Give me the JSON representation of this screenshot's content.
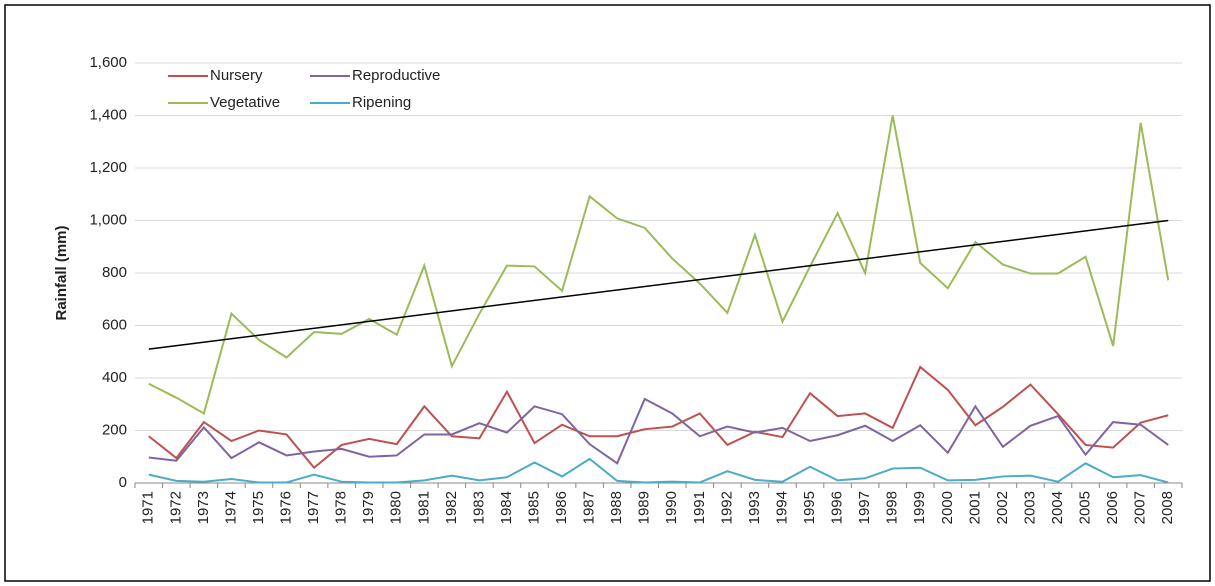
{
  "chart_data": {
    "type": "line",
    "categories": [
      "1971",
      "1972",
      "1973",
      "1974",
      "1975",
      "1976",
      "1977",
      "1978",
      "1979",
      "1980",
      "1981",
      "1982",
      "1983",
      "1984",
      "1985",
      "1986",
      "1987",
      "1988",
      "1989",
      "1990",
      "1991",
      "1992",
      "1993",
      "1994",
      "1995",
      "1996",
      "1997",
      "1998",
      "1999",
      "2000",
      "2001",
      "2002",
      "2003",
      "2004",
      "2005",
      "2006",
      "2007",
      "2008"
    ],
    "y_label": "Rainfall (mm)",
    "ylim": [
      0,
      1600
    ],
    "yticks": [
      0,
      200,
      400,
      600,
      800,
      {
        "value": 1000,
        "label": "1,000"
      },
      {
        "value": 1200,
        "label": "1,200"
      },
      {
        "value": 1400,
        "label": "1,400"
      },
      {
        "value": 1600,
        "label": "1,600"
      }
    ],
    "grid": true,
    "legend": "top-left",
    "series": [
      {
        "name": "Nursery",
        "color": "#c0504d",
        "values": [
          178,
          95,
          232,
          160,
          200,
          185,
          58,
          145,
          168,
          148,
          292,
          178,
          170,
          348,
          152,
          222,
          178,
          178,
          205,
          215,
          265,
          145,
          195,
          175,
          342,
          255,
          265,
          210,
          442,
          355,
          220,
          290,
          375,
          262,
          145,
          135,
          230,
          258
        ]
      },
      {
        "name": "Reproductive",
        "color": "#8064a2",
        "values": [
          97,
          85,
          212,
          95,
          155,
          105,
          120,
          130,
          100,
          105,
          185,
          185,
          228,
          192,
          292,
          262,
          148,
          75,
          320,
          265,
          178,
          215,
          192,
          210,
          160,
          182,
          218,
          160,
          220,
          115,
          292,
          138,
          218,
          255,
          108,
          232,
          222,
          145
        ]
      },
      {
        "name": "Vegetative",
        "color": "#9bbb59",
        "values": [
          378,
          325,
          265,
          645,
          545,
          478,
          575,
          568,
          625,
          565,
          828,
          445,
          645,
          828,
          825,
          732,
          1092,
          1008,
          972,
          855,
          760,
          648,
          945,
          615,
          825,
          1028,
          800,
          1400,
          838,
          742,
          918,
          832,
          798,
          798,
          862,
          522,
          1372,
          772
        ]
      },
      {
        "name": "Ripening",
        "color": "#4bacc6",
        "values": [
          32,
          8,
          5,
          15,
          2,
          2,
          32,
          5,
          2,
          2,
          10,
          28,
          10,
          22,
          78,
          25,
          92,
          8,
          2,
          5,
          2,
          45,
          12,
          5,
          62,
          10,
          18,
          55,
          58,
          10,
          12,
          25,
          28,
          5,
          75,
          22,
          30,
          2
        ]
      }
    ],
    "trendline": {
      "color": "#000000",
      "start": 510,
      "end": 1000
    }
  }
}
